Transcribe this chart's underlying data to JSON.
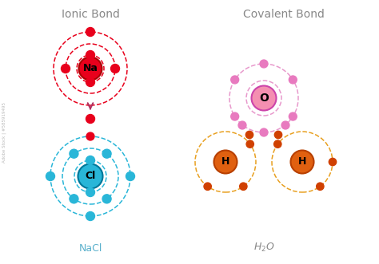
{
  "bg_color": "#ffffff",
  "title_ionic": "Ionic Bond",
  "title_covalent": "Covalent Bond",
  "label_nacl": "NaCl",
  "red_color": "#e8001c",
  "cyan_color": "#29b6d8",
  "pink_orbit": "#e899cc",
  "pink_electron": "#e87abf",
  "pink_nucleus_fill": "#f48fb1",
  "pink_nucleus_edge": "#cc44aa",
  "orange_orbit": "#e8a020",
  "orange_nucleus_fill": "#e06010",
  "orange_nucleus_edge": "#b84000",
  "orange_electron": "#d04000",
  "arrow_color": "#b03060",
  "title_color": "#888888",
  "nacl_color": "#5ab0cc",
  "h2o_color": "#888888",
  "title_fontsize": 10,
  "label_fontsize": 9,
  "nucleus_label_fontsize": 9,
  "watermark": "Adobe Stock | #585919495"
}
